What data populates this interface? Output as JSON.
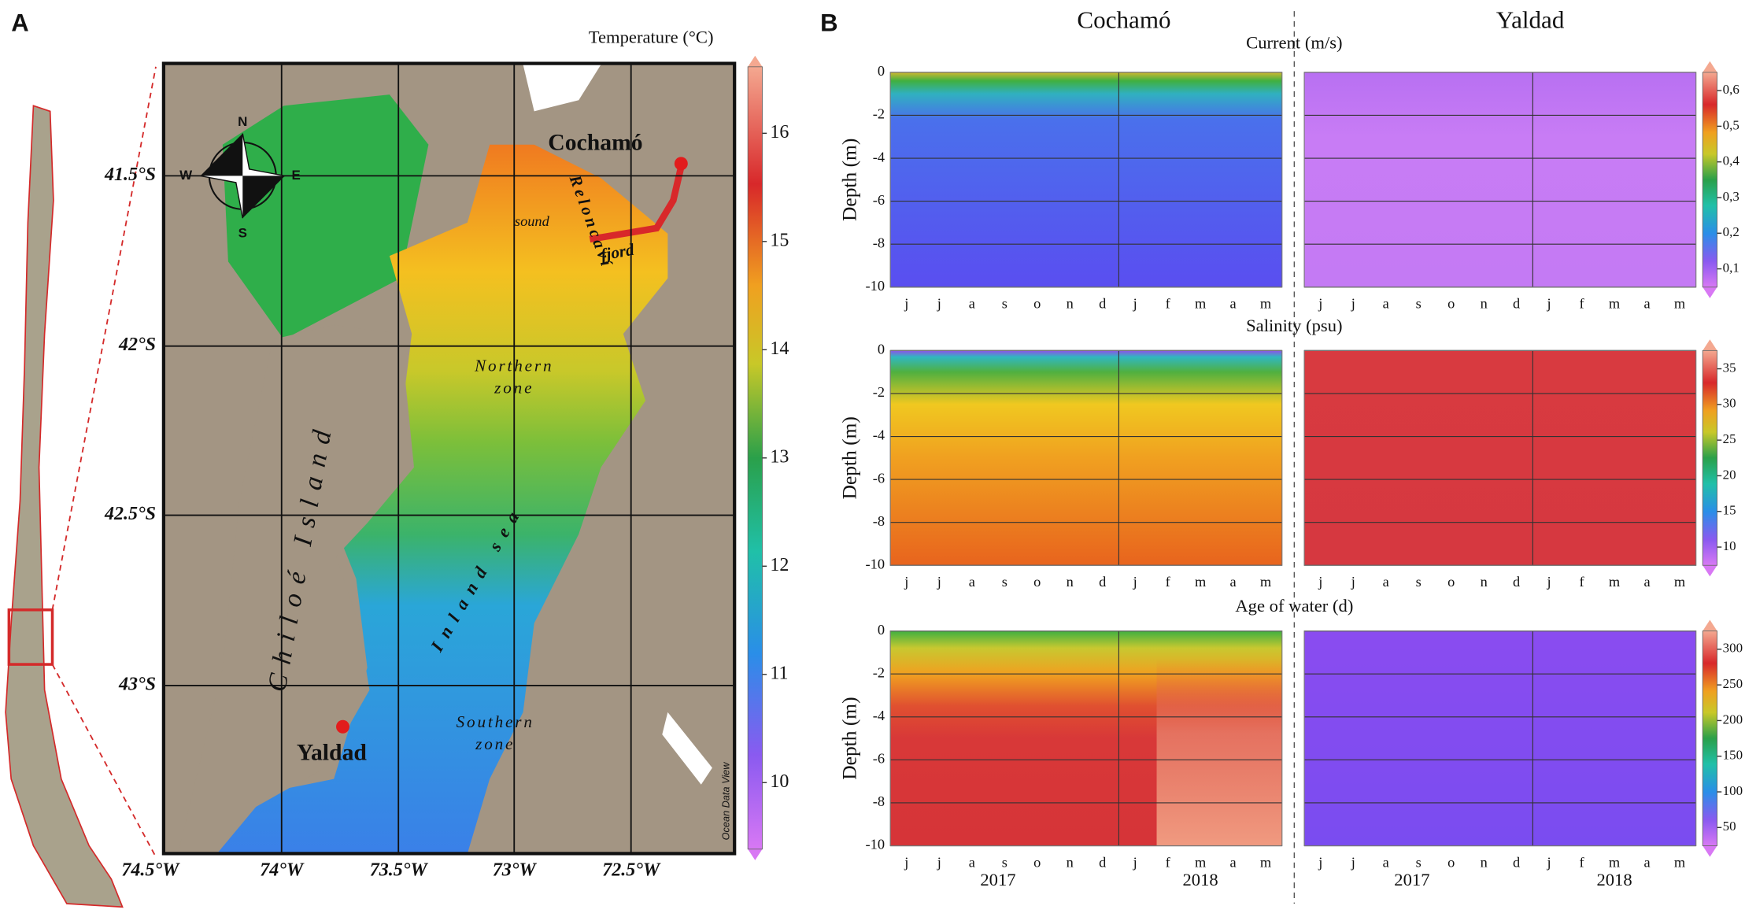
{
  "panel_a": {
    "label": "A",
    "colorbar": {
      "title": "Temperature  (°C)",
      "ticks": [
        10,
        11,
        12,
        13,
        14,
        15,
        16
      ]
    },
    "latitudes": [
      "41.5°S",
      "42°S",
      "42.5°S",
      "43°S"
    ],
    "longitudes": [
      "74.5°W",
      "74°W",
      "73.5°W",
      "73°W",
      "72.5°W"
    ],
    "places": [
      "Cochamó",
      "Yaldad"
    ],
    "island": "Chiloé Island",
    "northern_zone": [
      "Northern",
      "zone"
    ],
    "southern_zone": [
      "Southern",
      "zone"
    ],
    "inland_sea": "Inland sea",
    "reloncavi": [
      "Reloncaví",
      "sound",
      "fjord"
    ],
    "compass": [
      "N",
      "S",
      "W",
      "E"
    ],
    "credit": "Ocean Data View"
  },
  "panel_b": {
    "label": "B",
    "sites": [
      "Cochamó",
      "Yaldad"
    ],
    "y_label": "Depth (m)",
    "depth_ticks": [
      0,
      -2,
      -4,
      -6,
      -8,
      -10
    ],
    "months": [
      "j",
      "j",
      "a",
      "s",
      "o",
      "n",
      "d",
      "j",
      "f",
      "m",
      "a",
      "m"
    ],
    "years": [
      "2017",
      "2018"
    ],
    "rows": [
      {
        "title": "Current  (m/s)",
        "ticks": [
          {
            "value": 0.1,
            "label": "0,1"
          },
          {
            "value": 0.2,
            "label": "0,2"
          },
          {
            "value": 0.3,
            "label": "0,3"
          },
          {
            "value": 0.4,
            "label": "0,4"
          },
          {
            "value": 0.5,
            "label": "0,5"
          },
          {
            "value": 0.6,
            "label": "0,6"
          }
        ]
      },
      {
        "title": "Salinity  (psu)",
        "ticks": [
          10,
          15,
          20,
          25,
          30,
          35
        ]
      },
      {
        "title": "Age of water (d)",
        "ticks": [
          50,
          100,
          150,
          200,
          250,
          300
        ]
      }
    ]
  }
}
